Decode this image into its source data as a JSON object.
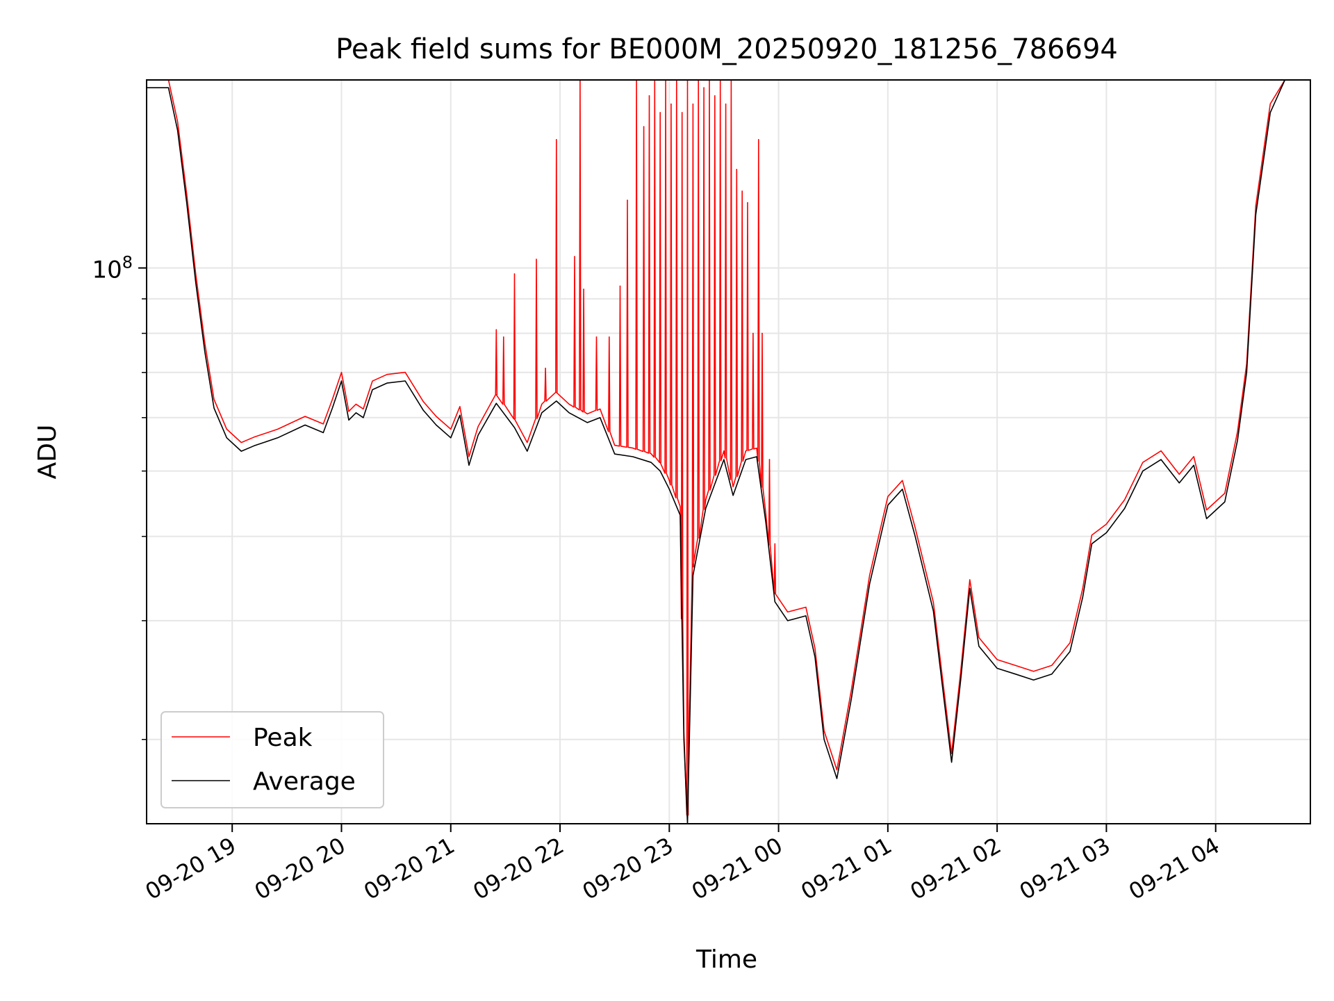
{
  "chart_data": {
    "type": "line",
    "title": "Peak field sums for BE000M_20250920_181256_786694",
    "xlabel": "Time",
    "ylabel": "ADU",
    "yscale": "log",
    "ylim": [
      15000000,
      190000000
    ],
    "xlim": [
      "2025-09-20 18:13",
      "2025-09-21 04:52"
    ],
    "grid": true,
    "legend_position": "lower-left",
    "x_ticks": [
      "09-20 19",
      "09-20 20",
      "09-20 21",
      "09-20 22",
      "09-20 23",
      "09-21 00",
      "09-21 01",
      "09-21 02",
      "09-21 03",
      "09-21 04"
    ],
    "y_ticks": [
      {
        "value": 100000000,
        "base": "10",
        "exponent": "8"
      }
    ],
    "colors": {
      "peak": "#ff0000",
      "average": "#000000"
    },
    "series": [
      {
        "name": "Average",
        "color": "#000000",
        "points": [
          [
            "2025-09-20 18:13",
            185000000
          ],
          [
            "2025-09-20 18:25",
            185000000
          ],
          [
            "2025-09-20 18:30",
            160000000
          ],
          [
            "2025-09-20 18:35",
            125000000
          ],
          [
            "2025-09-20 18:40",
            95000000
          ],
          [
            "2025-09-20 18:45",
            75000000
          ],
          [
            "2025-09-20 18:50",
            62000000
          ],
          [
            "2025-09-20 18:57",
            56000000
          ],
          [
            "2025-09-20 19:05",
            53500000
          ],
          [
            "2025-09-20 19:12",
            54500000
          ],
          [
            "2025-09-20 19:25",
            56000000
          ],
          [
            "2025-09-20 19:40",
            58500000
          ],
          [
            "2025-09-20 19:50",
            57000000
          ],
          [
            "2025-09-20 19:55",
            62000000
          ],
          [
            "2025-09-20 20:00",
            68000000
          ],
          [
            "2025-09-20 20:04",
            59500000
          ],
          [
            "2025-09-20 20:08",
            61000000
          ],
          [
            "2025-09-20 20:12",
            60000000
          ],
          [
            "2025-09-20 20:17",
            66000000
          ],
          [
            "2025-09-20 20:25",
            67500000
          ],
          [
            "2025-09-20 20:35",
            68000000
          ],
          [
            "2025-09-20 20:45",
            61500000
          ],
          [
            "2025-09-20 20:52",
            58500000
          ],
          [
            "2025-09-20 21:00",
            56000000
          ],
          [
            "2025-09-20 21:05",
            60500000
          ],
          [
            "2025-09-20 21:10",
            51000000
          ],
          [
            "2025-09-20 21:15",
            56500000
          ],
          [
            "2025-09-20 21:25",
            63000000
          ],
          [
            "2025-09-20 21:35",
            58000000
          ],
          [
            "2025-09-20 21:42",
            53500000
          ],
          [
            "2025-09-20 21:50",
            61000000
          ],
          [
            "2025-09-20 21:58",
            63500000
          ],
          [
            "2025-09-20 22:05",
            61000000
          ],
          [
            "2025-09-20 22:15",
            59000000
          ],
          [
            "2025-09-20 22:22",
            60000000
          ],
          [
            "2025-09-20 22:30",
            53000000
          ],
          [
            "2025-09-20 22:40",
            52500000
          ],
          [
            "2025-09-20 22:50",
            51500000
          ],
          [
            "2025-09-20 22:55",
            50000000
          ],
          [
            "2025-09-20 23:00",
            47000000
          ],
          [
            "2025-09-20 23:06",
            43000000
          ],
          [
            "2025-09-20 23:08",
            20000000
          ],
          [
            "2025-09-20 23:10",
            15000000
          ],
          [
            "2025-09-20 23:13",
            35000000
          ],
          [
            "2025-09-20 23:20",
            44000000
          ],
          [
            "2025-09-20 23:30",
            52000000
          ],
          [
            "2025-09-20 23:35",
            46000000
          ],
          [
            "2025-09-20 23:42",
            52000000
          ],
          [
            "2025-09-20 23:48",
            52500000
          ],
          [
            "2025-09-20 23:53",
            42000000
          ],
          [
            "2025-09-20 23:58",
            32000000
          ],
          [
            "2025-09-21 00:05",
            30000000
          ],
          [
            "2025-09-21 00:15",
            30500000
          ],
          [
            "2025-09-21 00:20",
            26500000
          ],
          [
            "2025-09-21 00:25",
            20000000
          ],
          [
            "2025-09-21 00:32",
            17500000
          ],
          [
            "2025-09-21 00:40",
            23000000
          ],
          [
            "2025-09-21 00:50",
            34000000
          ],
          [
            "2025-09-21 01:00",
            44500000
          ],
          [
            "2025-09-21 01:08",
            47000000
          ],
          [
            "2025-09-21 01:15",
            40000000
          ],
          [
            "2025-09-21 01:25",
            31000000
          ],
          [
            "2025-09-21 01:35",
            18500000
          ],
          [
            "2025-09-21 01:40",
            24500000
          ],
          [
            "2025-09-21 01:45",
            33500000
          ],
          [
            "2025-09-21 01:50",
            27500000
          ],
          [
            "2025-09-21 02:00",
            25500000
          ],
          [
            "2025-09-21 02:10",
            25000000
          ],
          [
            "2025-09-21 02:20",
            24500000
          ],
          [
            "2025-09-21 02:30",
            25000000
          ],
          [
            "2025-09-21 02:40",
            27000000
          ],
          [
            "2025-09-21 02:47",
            32500000
          ],
          [
            "2025-09-21 02:52",
            39000000
          ],
          [
            "2025-09-21 03:00",
            40500000
          ],
          [
            "2025-09-21 03:10",
            44000000
          ],
          [
            "2025-09-21 03:20",
            50000000
          ],
          [
            "2025-09-21 03:30",
            52000000
          ],
          [
            "2025-09-21 03:40",
            48000000
          ],
          [
            "2025-09-21 03:48",
            51000000
          ],
          [
            "2025-09-21 03:55",
            42500000
          ],
          [
            "2025-09-21 04:05",
            45000000
          ],
          [
            "2025-09-21 04:12",
            55500000
          ],
          [
            "2025-09-21 04:17",
            70000000
          ],
          [
            "2025-09-21 04:22",
            120000000
          ],
          [
            "2025-09-21 04:30",
            170000000
          ],
          [
            "2025-09-21 04:38",
            190000000
          ],
          [
            "2025-09-21 04:52",
            190000000
          ]
        ]
      },
      {
        "name": "Peak",
        "color": "#ff0000",
        "spikes": [
          [
            "2025-09-20 21:25",
            81000000
          ],
          [
            "2025-09-20 21:29",
            79000000
          ],
          [
            "2025-09-20 21:35",
            98000000
          ],
          [
            "2025-09-20 21:47",
            103000000
          ],
          [
            "2025-09-20 21:52",
            71000000
          ],
          [
            "2025-09-20 21:58",
            155000000
          ],
          [
            "2025-09-20 22:08",
            104000000
          ],
          [
            "2025-09-20 22:11",
            190000000
          ],
          [
            "2025-09-20 22:13",
            93000000
          ],
          [
            "2025-09-20 22:20",
            79000000
          ],
          [
            "2025-09-20 22:27",
            79000000
          ],
          [
            "2025-09-20 22:33",
            94000000
          ],
          [
            "2025-09-20 22:37",
            126000000
          ],
          [
            "2025-09-20 22:42",
            190000000
          ],
          [
            "2025-09-20 22:46",
            162000000
          ],
          [
            "2025-09-20 22:49",
            180000000
          ],
          [
            "2025-09-20 22:52",
            190000000
          ],
          [
            "2025-09-20 22:55",
            170000000
          ],
          [
            "2025-09-20 22:58",
            190000000
          ],
          [
            "2025-09-20 23:01",
            175000000
          ],
          [
            "2025-09-20 23:04",
            190000000
          ],
          [
            "2025-09-20 23:07",
            170000000
          ],
          [
            "2025-09-20 23:10",
            190000000
          ],
          [
            "2025-09-20 23:13",
            175000000
          ],
          [
            "2025-09-20 23:16",
            190000000
          ],
          [
            "2025-09-20 23:19",
            185000000
          ],
          [
            "2025-09-20 23:22",
            190000000
          ],
          [
            "2025-09-20 23:25",
            180000000
          ],
          [
            "2025-09-20 23:28",
            190000000
          ],
          [
            "2025-09-20 23:31",
            175000000
          ],
          [
            "2025-09-20 23:34",
            190000000
          ],
          [
            "2025-09-20 23:37",
            140000000
          ],
          [
            "2025-09-20 23:40",
            130000000
          ],
          [
            "2025-09-20 23:43",
            125000000
          ],
          [
            "2025-09-20 23:46",
            80000000
          ],
          [
            "2025-09-20 23:49",
            155000000
          ],
          [
            "2025-09-20 23:51",
            80000000
          ],
          [
            "2025-09-20 23:55",
            52000000
          ],
          [
            "2025-09-20 23:58",
            39000000
          ]
        ]
      }
    ]
  }
}
